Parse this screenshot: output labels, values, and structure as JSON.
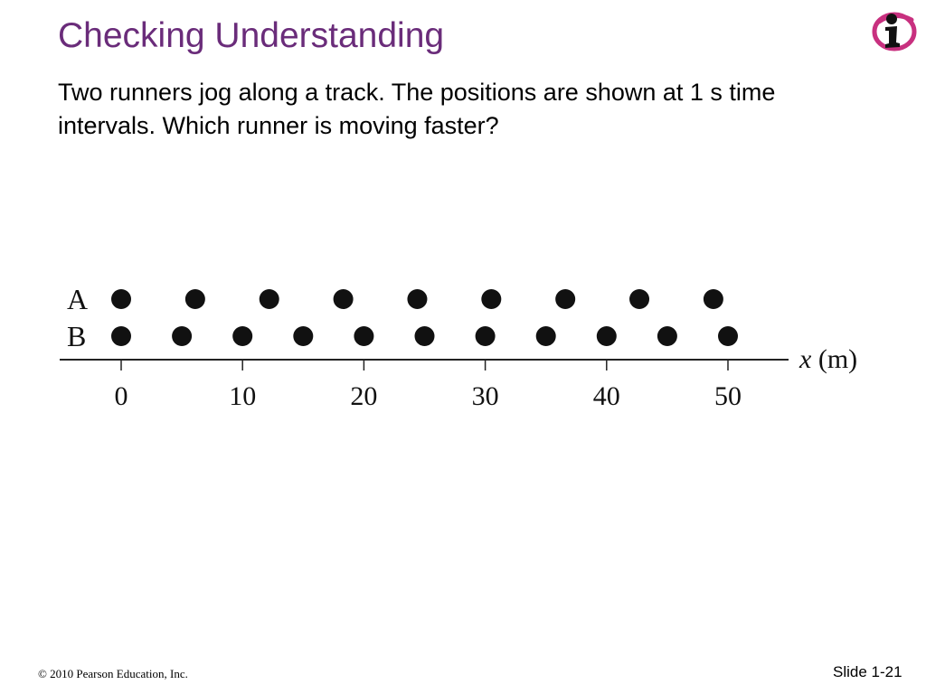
{
  "slide": {
    "title": "Checking Understanding",
    "question": "Two runners jog along a track. The positions are shown at 1 s time intervals.  Which runner is moving faster?",
    "logo_icon": "info-i-logo-icon",
    "footer_copyright": "© 2010 Pearson Education, Inc.",
    "footer_slide_number": "Slide 1-21"
  },
  "colors": {
    "title": "#6a2c7a",
    "logo_magenta": "#c8307f",
    "dots": "#111111"
  },
  "chart_data": {
    "type": "scatter",
    "xlabel_var": "x",
    "xlabel_unit": "(m)",
    "xlim": [
      -5,
      55
    ],
    "ticks": [
      0,
      10,
      20,
      30,
      40,
      50
    ],
    "tick_labels": [
      "0",
      "10",
      "20",
      "30",
      "40",
      "50"
    ],
    "interval": "1 s",
    "series": [
      {
        "name": "A",
        "x": [
          0,
          6.1,
          12.2,
          18.3,
          24.4,
          30.5,
          36.6,
          42.7,
          48.8
        ]
      },
      {
        "name": "B",
        "x": [
          0,
          5,
          10,
          15,
          20,
          25,
          30,
          35,
          40,
          45,
          50
        ]
      }
    ]
  }
}
